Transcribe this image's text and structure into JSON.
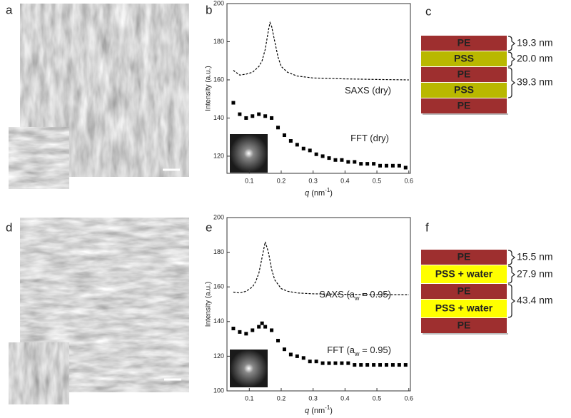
{
  "panels": [
    "a",
    "b",
    "c",
    "d",
    "e",
    "f"
  ],
  "chart_data": [
    {
      "type": "line",
      "y_label": "Intensity (a.u.)",
      "x_label": [
        "q",
        " (nm",
        "-1",
        ")"
      ],
      "xlim": [
        0.03,
        0.605
      ],
      "ylim": [
        111,
        200
      ],
      "xticks": [
        0.1,
        0.2,
        0.3,
        0.4,
        0.5,
        0.6
      ],
      "yticks": [
        120,
        140,
        160,
        180,
        200
      ],
      "series": [
        {
          "label": [
            "SAXS (dry)"
          ],
          "style": "dashed",
          "color": "#000000",
          "x": [
            0.05,
            0.07,
            0.09,
            0.11,
            0.13,
            0.14,
            0.15,
            0.16,
            0.165,
            0.17,
            0.18,
            0.19,
            0.2,
            0.22,
            0.25,
            0.3,
            0.4,
            0.5,
            0.6
          ],
          "values": [
            165,
            162.5,
            163,
            164,
            167,
            170,
            176,
            186,
            190,
            188,
            180,
            172,
            167,
            164,
            162,
            161,
            160.5,
            160.2,
            160
          ]
        },
        {
          "label": [
            "FFT (dry)"
          ],
          "style": "squares",
          "color": "#000000",
          "x": [
            0.05,
            0.07,
            0.09,
            0.11,
            0.13,
            0.15,
            0.17,
            0.19,
            0.21,
            0.23,
            0.25,
            0.27,
            0.29,
            0.31,
            0.33,
            0.35,
            0.37,
            0.39,
            0.41,
            0.43,
            0.45,
            0.47,
            0.49,
            0.51,
            0.53,
            0.55,
            0.57,
            0.59
          ],
          "values": [
            148,
            142,
            140,
            141,
            142,
            141,
            140,
            135,
            131,
            128,
            126,
            124,
            123,
            121,
            120,
            119,
            118,
            118,
            117,
            117,
            116,
            116,
            116,
            115,
            115,
            115,
            115,
            114
          ]
        }
      ]
    },
    {
      "type": "line",
      "y_label": "Intensity (a.u.)",
      "x_label": [
        "q",
        " (nm",
        "-1",
        ")"
      ],
      "xlim": [
        0.03,
        0.605
      ],
      "ylim": [
        100,
        200
      ],
      "xticks": [
        0.1,
        0.2,
        0.3,
        0.4,
        0.5,
        0.6
      ],
      "yticks": [
        100,
        120,
        140,
        160,
        180,
        200
      ],
      "series": [
        {
          "label": [
            "SAXS (a",
            "w",
            " = 0.95)"
          ],
          "style": "dashed",
          "color": "#000000",
          "x": [
            0.05,
            0.07,
            0.09,
            0.11,
            0.12,
            0.13,
            0.14,
            0.15,
            0.16,
            0.17,
            0.18,
            0.2,
            0.22,
            0.25,
            0.3,
            0.4,
            0.5,
            0.6
          ],
          "values": [
            157,
            156.5,
            157.5,
            160,
            163,
            168,
            177,
            186,
            180,
            170,
            164,
            159,
            157.5,
            156.5,
            156,
            155.7,
            155.5,
            155.5
          ]
        },
        {
          "label": [
            "FFT (a",
            "w",
            " = 0.95)"
          ],
          "style": "squares",
          "color": "#000000",
          "x": [
            0.05,
            0.07,
            0.09,
            0.11,
            0.13,
            0.14,
            0.15,
            0.17,
            0.19,
            0.21,
            0.23,
            0.25,
            0.27,
            0.29,
            0.31,
            0.33,
            0.35,
            0.37,
            0.39,
            0.41,
            0.43,
            0.45,
            0.47,
            0.49,
            0.51,
            0.53,
            0.55,
            0.57,
            0.59
          ],
          "values": [
            136,
            134,
            133,
            135,
            137,
            139,
            137,
            135,
            129,
            124,
            121,
            120,
            119,
            117,
            117,
            116,
            116,
            116,
            116,
            116,
            115,
            115,
            115,
            115,
            115,
            115,
            115,
            115,
            115
          ]
        }
      ]
    }
  ],
  "diagrams": [
    {
      "layers": [
        {
          "name": "PE",
          "color": "#9e2f2f",
          "text_color": "#ffffff"
        },
        {
          "name": "PSS",
          "color": "#b9b800",
          "text_color": "#1c1cb0"
        },
        {
          "name": "PE",
          "color": "#9e2f2f",
          "text_color": "#ffffff"
        },
        {
          "name": "PSS",
          "color": "#b9b800",
          "text_color": "#1c1cb0"
        },
        {
          "name": "PE",
          "color": "#9e2f2f",
          "text_color": "#ffffff"
        }
      ],
      "dims": [
        "19.3 nm",
        "20.0 nm",
        "39.3 nm"
      ]
    },
    {
      "layers": [
        {
          "name": "PE",
          "color": "#9e2f2f",
          "text_color": "#ffffff"
        },
        {
          "name": "PSS + water",
          "color": "#ffff00",
          "text_color": "#1c1cb0"
        },
        {
          "name": "PE",
          "color": "#9e2f2f",
          "text_color": "#ffffff"
        },
        {
          "name": "PSS + water",
          "color": "#ffff00",
          "text_color": "#1c1cb0"
        },
        {
          "name": "PE",
          "color": "#9e2f2f",
          "text_color": "#ffffff"
        }
      ],
      "dims": [
        "15.5 nm",
        "27.9 nm",
        "43.4 nm"
      ]
    }
  ]
}
